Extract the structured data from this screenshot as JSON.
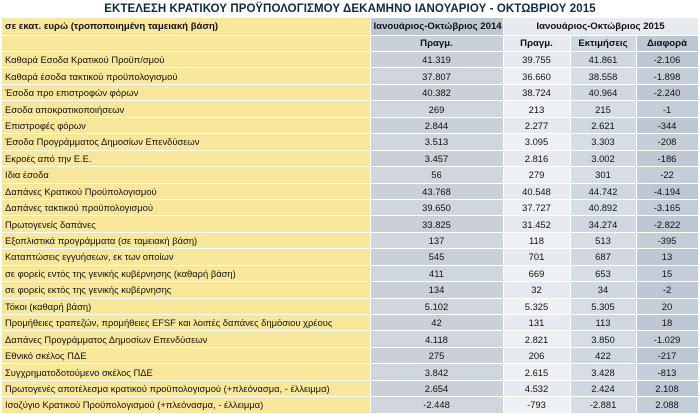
{
  "title": "ΕΚΤΕΛΕΣΗ ΚΡΑΤΙΚΟΥ ΠΡΟΫΠΟΛΟΓΙΣΜΟΥ ΔΕΚΑΜΗΝΟ ΙΑΝΟΥΑΡΙΟΥ - ΟΚΤΩΒΡΙΟΥ 2015",
  "header": {
    "unit_label": "σε εκατ. ευρώ (τροποποιημένη ταμειακή βάση)",
    "period_2014": "Ιανουάριος-Οκτώβριος 2014",
    "period_2015": "Ιανουάριος-Οκτώβριος 2015",
    "col_actual_2014": "Πραγμ.",
    "col_actual_2015": "Πραγμ.",
    "col_estimates": "Εκτιμήσεις",
    "col_difference": "Διαφορά"
  },
  "rows": [
    {
      "label": "Καθαρά Εσοδα Κρατικού Προϋπ/σμού",
      "v2014": "41.319",
      "v2015": "39.755",
      "est": "41.861",
      "diff": "-2.106"
    },
    {
      "label": "Καθαρά έσοδα τακτικού προϋπολογισμού",
      "v2014": "37.807",
      "v2015": "36.660",
      "est": "38.558",
      "diff": "-1.898"
    },
    {
      "label": "Έσοδα προ επιστροφών φόρων",
      "v2014": "40.382",
      "v2015": "38.724",
      "est": "40.964",
      "diff": "-2.240"
    },
    {
      "label": "Εσοδα αποκρατικοποιήσεων",
      "v2014": "269",
      "v2015": "213",
      "est": "215",
      "diff": "-1"
    },
    {
      "label": " Επιστροφές φόρων",
      "v2014": "2.844",
      "v2015": "2.277",
      "est": "2.621",
      "diff": "-344"
    },
    {
      "label": "Έσοδα Προγράμματος Δημοσίων Επενδύσεων",
      "v2014": "3.513",
      "v2015": "3.095",
      "est": "3.303",
      "diff": "-208"
    },
    {
      "label": "Εκροές από την Ε.Ε.",
      "v2014": "3.457",
      "v2015": "2.816",
      "est": "3.002",
      "diff": "-186"
    },
    {
      "label": "Ιδια έσοδα",
      "v2014": "56",
      "v2015": "279",
      "est": "301",
      "diff": "-22"
    },
    {
      "label": "Δαπάνες Κρατικού Προϋπολογισμού",
      "v2014": "43.768",
      "v2015": "40.548",
      "est": "44.742",
      "diff": "-4.194"
    },
    {
      "label": "Δαπάνες τακτικού προϋπολογισμού",
      "v2014": "39.650",
      "v2015": "37.727",
      "est": "40.892",
      "diff": "-3.165"
    },
    {
      "label": "Πρωτογενείς δαπάνες",
      "v2014": "33.825",
      "v2015": "31.452",
      "est": "34.274",
      "diff": "-2.822"
    },
    {
      "label": "Εξοπλιστικά προγράμματα (σε ταμειακή βάση)",
      "v2014": "137",
      "v2015": "118",
      "est": "513",
      "diff": "-395"
    },
    {
      "label": "Καταπτώσεις εγγυήσεων, εκ των οποίων",
      "v2014": "545",
      "v2015": "701",
      "est": "687",
      "diff": "13"
    },
    {
      "label": "σε φορείς εντός της γενικής κυβέρνησης (καθαρή βάση)",
      "v2014": "411",
      "v2015": "669",
      "est": "653",
      "diff": "15"
    },
    {
      "label": "σε φορείς εκτός της γενικής κυβέρνησης",
      "v2014": "134",
      "v2015": "32",
      "est": "34",
      "diff": "-2"
    },
    {
      "label": "Τόκοι (καθαρή βάση)",
      "v2014": "5.102",
      "v2015": "5.325",
      "est": "5.305",
      "diff": "20"
    },
    {
      "label": "Προμήθειες τραπεζών, προμήθειες EFSF και λοιπές δαπάνες δημόσιου χρέους",
      "v2014": "42",
      "v2015": "131",
      "est": "113",
      "diff": "18"
    },
    {
      "label": "Δαπάνες Προγράμματος Δημοσίων Επενδύσεων",
      "v2014": "4.118",
      "v2015": "2.821",
      "est": "3.850",
      "diff": "-1.029"
    },
    {
      "label": "Εθνικό σκέλος ΠΔΕ",
      "v2014": "275",
      "v2015": "206",
      "est": "422",
      "diff": "-217"
    },
    {
      "label": "Συγχρηματοδοτούμενο σκέλος ΠΔΕ",
      "v2014": "3.842",
      "v2015": "2.615",
      "est": "3.428",
      "diff": "-813"
    },
    {
      "label": "Πρωτογενές αποτέλεσμα κρατικού προϋπολογισμού (+πλεόνασμα, - έλλειμμα)",
      "v2014": "2.654",
      "v2015": "4.532",
      "est": "2.424",
      "diff": "2.108"
    },
    {
      "label": "Ισοζύγιο Κρατικού Προϋπολογισμού (+πλεόνασμα, - έλλειμμα)",
      "v2014": "-2.448",
      "v2015": "-793",
      "est": "-2.881",
      "diff": "2.088"
    }
  ],
  "colors": {
    "label_bg": "#f8e79b",
    "title_color": "#0e2a47"
  }
}
